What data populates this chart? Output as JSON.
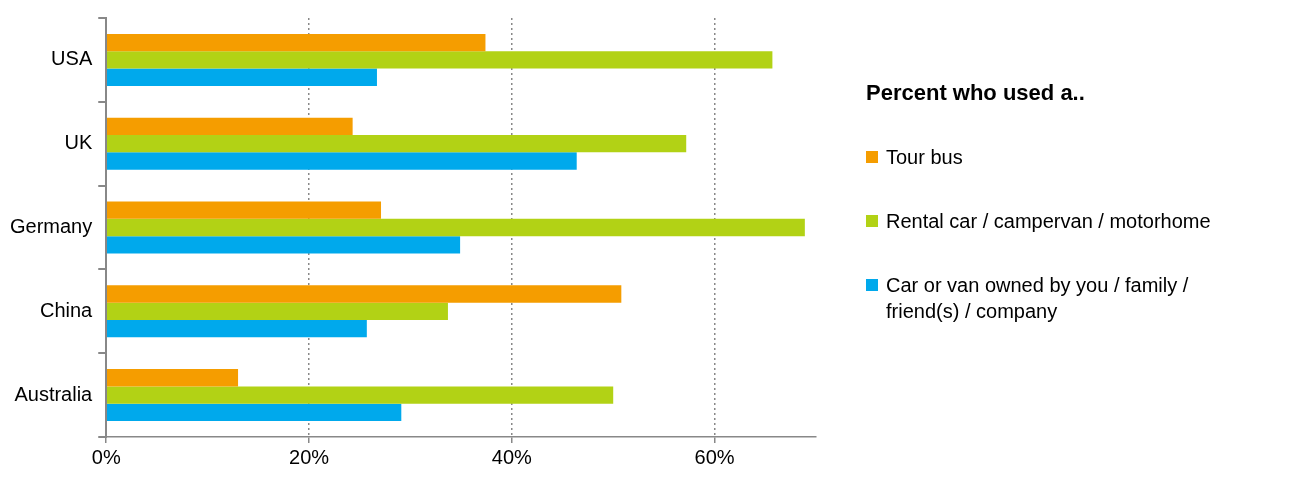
{
  "chart_data": {
    "type": "bar",
    "orientation": "horizontal",
    "legend_title": "Percent who used a..",
    "categories": [
      "USA",
      "UK",
      "Germany",
      "China",
      "Australia"
    ],
    "series": [
      {
        "name": "Tour bus",
        "color": "#f59d00",
        "values": [
          37.4,
          24.3,
          27.1,
          50.8,
          13.0
        ]
      },
      {
        "name": "Rental car / campervan / motorhome",
        "color": "#b2d215",
        "values": [
          65.7,
          57.2,
          68.9,
          33.7,
          50.0
        ]
      },
      {
        "name": "Car or van owned by you / family / friend(s) / company",
        "color": "#00a9ec",
        "values": [
          26.7,
          46.4,
          34.9,
          25.7,
          29.1
        ]
      }
    ],
    "xlim": [
      0,
      70
    ],
    "xticks": [
      {
        "value": 0,
        "label": "0%"
      },
      {
        "value": 20,
        "label": "20%"
      },
      {
        "value": 40,
        "label": "40%"
      },
      {
        "value": 60,
        "label": "60%"
      }
    ],
    "grid": "x",
    "legend": "right"
  }
}
